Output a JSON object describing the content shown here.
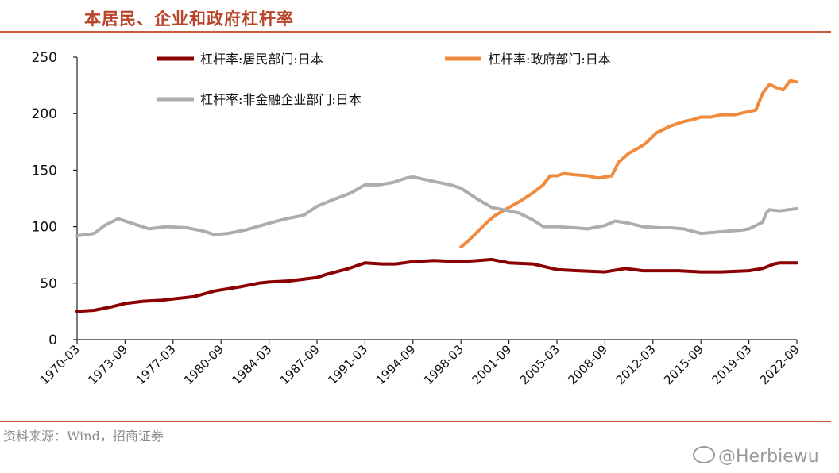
{
  "header": {
    "title": "本居民、企业和政府杠杆率"
  },
  "footer": {
    "source": "资料来源：Wind，招商证券",
    "watermark": "@Herbiewu"
  },
  "chart_data": {
    "type": "line",
    "title": "本居民、企业和政府杠杆率",
    "xlabel": "",
    "ylabel": "",
    "ylim": [
      0,
      250
    ],
    "yticks": [
      0,
      50,
      100,
      150,
      200,
      250
    ],
    "xticks": [
      "1970-03",
      "1973-09",
      "1977-03",
      "1980-09",
      "1984-03",
      "1987-09",
      "1991-03",
      "1994-09",
      "1998-03",
      "2001-09",
      "2005-03",
      "2008-09",
      "2012-03",
      "2015-09",
      "2019-03",
      "2022-09"
    ],
    "x_range": [
      "1970-03",
      "2022-09"
    ],
    "grid": false,
    "legend_position": "top",
    "series": [
      {
        "name": "杠杆率:居民部门:日本",
        "color": "#8b0000",
        "points": [
          [
            "1970-03",
            25
          ],
          [
            "1971-06",
            26
          ],
          [
            "1972-09",
            29
          ],
          [
            "1973-09",
            32
          ],
          [
            "1975-01",
            34
          ],
          [
            "1976-06",
            35
          ],
          [
            "1977-03",
            36
          ],
          [
            "1978-09",
            38
          ],
          [
            "1980-03",
            43
          ],
          [
            "1980-09",
            44
          ],
          [
            "1982-03",
            47
          ],
          [
            "1983-06",
            50
          ],
          [
            "1984-03",
            51
          ],
          [
            "1985-09",
            52
          ],
          [
            "1987-09",
            55
          ],
          [
            "1988-06",
            58
          ],
          [
            "1990-01",
            63
          ],
          [
            "1991-03",
            68
          ],
          [
            "1992-06",
            67
          ],
          [
            "1993-06",
            67
          ],
          [
            "1994-09",
            69
          ],
          [
            "1996-03",
            70
          ],
          [
            "1998-03",
            69
          ],
          [
            "1999-06",
            70
          ],
          [
            "2000-06",
            71
          ],
          [
            "2001-09",
            68
          ],
          [
            "2003-06",
            67
          ],
          [
            "2005-03",
            62
          ],
          [
            "2006-09",
            61
          ],
          [
            "2008-09",
            60
          ],
          [
            "2010-03",
            63
          ],
          [
            "2011-06",
            61
          ],
          [
            "2012-03",
            61
          ],
          [
            "2014-01",
            61
          ],
          [
            "2015-09",
            60
          ],
          [
            "2017-03",
            60
          ],
          [
            "2019-03",
            61
          ],
          [
            "2020-03",
            63
          ],
          [
            "2021-01",
            67
          ],
          [
            "2021-06",
            68
          ],
          [
            "2022-09",
            68
          ]
        ]
      },
      {
        "name": "杠杆率:政府部门:日本",
        "color": "#f08a3c",
        "points": [
          [
            "1998-03",
            82
          ],
          [
            "1998-09",
            87
          ],
          [
            "1999-06",
            96
          ],
          [
            "2000-03",
            105
          ],
          [
            "2000-09",
            110
          ],
          [
            "2001-09",
            117
          ],
          [
            "2002-06",
            122
          ],
          [
            "2003-06",
            130
          ],
          [
            "2004-03",
            137
          ],
          [
            "2004-09",
            145
          ],
          [
            "2005-03",
            145
          ],
          [
            "2005-09",
            147
          ],
          [
            "2006-06",
            146
          ],
          [
            "2007-06",
            145
          ],
          [
            "2008-03",
            143
          ],
          [
            "2009-03",
            145
          ],
          [
            "2009-09",
            157
          ],
          [
            "2010-06",
            165
          ],
          [
            "2011-03",
            170
          ],
          [
            "2011-09",
            174
          ],
          [
            "2012-06",
            183
          ],
          [
            "2013-06",
            189
          ],
          [
            "2014-06",
            193
          ],
          [
            "2015-03",
            195
          ],
          [
            "2015-09",
            197
          ],
          [
            "2016-06",
            197
          ],
          [
            "2017-03",
            199
          ],
          [
            "2018-03",
            199
          ],
          [
            "2019-03",
            202
          ],
          [
            "2019-09",
            203
          ],
          [
            "2020-03",
            218
          ],
          [
            "2020-09",
            226
          ],
          [
            "2021-03",
            223
          ],
          [
            "2021-09",
            221
          ],
          [
            "2022-03",
            229
          ],
          [
            "2022-09",
            228
          ]
        ]
      },
      {
        "name": "杠杆率:非金融企业部门:日本",
        "color": "#adadad",
        "points": [
          [
            "1970-03",
            92
          ],
          [
            "1971-06",
            94
          ],
          [
            "1972-03",
            101
          ],
          [
            "1973-03",
            107
          ],
          [
            "1974-03",
            103
          ],
          [
            "1975-06",
            98
          ],
          [
            "1976-09",
            100
          ],
          [
            "1978-03",
            99
          ],
          [
            "1979-06",
            96
          ],
          [
            "1980-03",
            93
          ],
          [
            "1981-03",
            94
          ],
          [
            "1982-06",
            97
          ],
          [
            "1984-03",
            103
          ],
          [
            "1985-06",
            107
          ],
          [
            "1986-09",
            110
          ],
          [
            "1987-09",
            118
          ],
          [
            "1988-09",
            123
          ],
          [
            "1990-03",
            130
          ],
          [
            "1991-03",
            137
          ],
          [
            "1992-03",
            137
          ],
          [
            "1993-03",
            139
          ],
          [
            "1994-03",
            143
          ],
          [
            "1994-09",
            144
          ],
          [
            "1996-03",
            140
          ],
          [
            "1997-06",
            137
          ],
          [
            "1998-03",
            134
          ],
          [
            "1999-06",
            124
          ],
          [
            "2000-06",
            117
          ],
          [
            "2001-09",
            114
          ],
          [
            "2002-06",
            112
          ],
          [
            "2003-06",
            106
          ],
          [
            "2004-03",
            100
          ],
          [
            "2005-03",
            100
          ],
          [
            "2006-06",
            99
          ],
          [
            "2007-06",
            98
          ],
          [
            "2008-09",
            101
          ],
          [
            "2009-06",
            105
          ],
          [
            "2010-06",
            103
          ],
          [
            "2011-06",
            100
          ],
          [
            "2012-09",
            99
          ],
          [
            "2013-06",
            99
          ],
          [
            "2014-06",
            98
          ],
          [
            "2015-09",
            94
          ],
          [
            "2016-09",
            95
          ],
          [
            "2017-09",
            96
          ],
          [
            "2018-09",
            97
          ],
          [
            "2019-03",
            98
          ],
          [
            "2020-03",
            104
          ],
          [
            "2020-06",
            112
          ],
          [
            "2020-09",
            115
          ],
          [
            "2021-06",
            114
          ],
          [
            "2022-09",
            116
          ]
        ]
      }
    ]
  }
}
